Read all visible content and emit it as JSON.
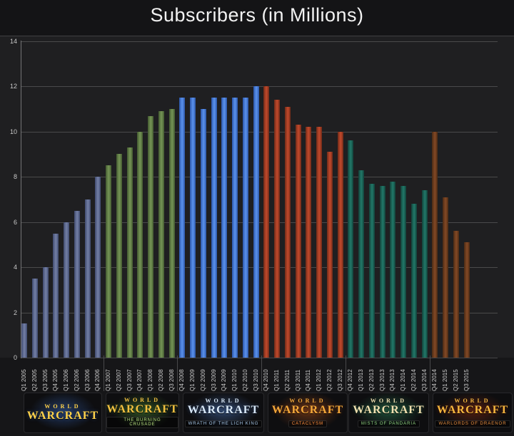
{
  "title": "Subscribers (in Millions)",
  "colors": {
    "page_bg": "#161618",
    "plot_bg": "#1f1f21",
    "gridline": "#6e6e70",
    "title_text": "#f2f2f2",
    "tick_text": "#c8c8c8"
  },
  "chart_data": {
    "type": "bar",
    "title": "Subscribers (in Millions)",
    "xlabel": "",
    "ylabel": "",
    "ylim": [
      0,
      14
    ],
    "yticks": [
      0,
      2,
      4,
      6,
      8,
      10,
      12,
      14
    ],
    "grid": true,
    "legend_position": "none",
    "categories": [
      "Q1 2005",
      "Q2 2005",
      "Q3 2005",
      "Q4 2005",
      "Q1 2006",
      "Q2 2006",
      "Q3 2006",
      "Q4 2006",
      "Q1 2007",
      "Q2 2007",
      "Q3 2007",
      "Q4 2007",
      "Q1 2008",
      "Q2 2008",
      "Q3 2008",
      "Q4 2008",
      "Q1 2009",
      "Q2 2009",
      "Q3 2009",
      "Q4 2009",
      "Q1 2010",
      "Q2 2010",
      "Q3 2010",
      "Q4 2010",
      "Q1 2011",
      "Q2 2011",
      "Q3 2011",
      "Q4 2011",
      "Q1 2012",
      "Q2 2012",
      "Q3 2012",
      "Q4 2012",
      "Q1 2013",
      "Q2 2013",
      "Q3 2013",
      "Q4 2013",
      "Q1 2014",
      "Q2 2014",
      "Q3 2014",
      "Q4 2014",
      "Q1 2015",
      "Q2 2015",
      "Q3 2015"
    ],
    "values": [
      1.5,
      3.5,
      4,
      5.5,
      6,
      6.5,
      7,
      8,
      8.5,
      9,
      9.3,
      10,
      10.7,
      10.9,
      11,
      11.5,
      11.5,
      11,
      11.5,
      11.5,
      11.5,
      11.5,
      12,
      12,
      11.4,
      11.1,
      10.3,
      10.2,
      10.2,
      9.1,
      10,
      9.6,
      8.3,
      7.7,
      7.6,
      7.8,
      7.6,
      6.8,
      7.4,
      10,
      7.1,
      5.6,
      5.1
    ],
    "series": [
      {
        "name": "World of Warcraft",
        "bar_mid": "#6e7aa0",
        "bar_edge": "#3f4a6e",
        "quarters": [
          "Q1 2005",
          "Q2 2005",
          "Q3 2005",
          "Q4 2005",
          "Q1 2006",
          "Q2 2006",
          "Q3 2006",
          "Q4 2006"
        ],
        "values": [
          1.5,
          3.5,
          4,
          5.5,
          6,
          6.5,
          7,
          8
        ]
      },
      {
        "name": "The Burning Crusade",
        "bar_mid": "#708f52",
        "bar_edge": "#42582f",
        "quarters": [
          "Q1 2007",
          "Q2 2007",
          "Q3 2007",
          "Q4 2007",
          "Q1 2008",
          "Q2 2008",
          "Q3 2008"
        ],
        "values": [
          8.5,
          9,
          9.3,
          10,
          10.7,
          10.9,
          11
        ]
      },
      {
        "name": "Wrath of the Lich King",
        "bar_mid": "#568ce6",
        "bar_edge": "#2b55a8",
        "quarters": [
          "Q4 2008",
          "Q1 2009",
          "Q2 2009",
          "Q3 2009",
          "Q4 2009",
          "Q1 2010",
          "Q2 2010",
          "Q3 2010"
        ],
        "values": [
          11.5,
          11.5,
          11,
          11.5,
          11.5,
          11.5,
          11.5,
          12
        ]
      },
      {
        "name": "Cataclysm",
        "bar_mid": "#ba462a",
        "bar_edge": "#6e2a18",
        "quarters": [
          "Q4 2010",
          "Q1 2011",
          "Q2 2011",
          "Q3 2011",
          "Q4 2011",
          "Q1 2012",
          "Q2 2012",
          "Q3 2012"
        ],
        "values": [
          12,
          11.4,
          11.1,
          10.3,
          10.2,
          10.2,
          9.1,
          10
        ]
      },
      {
        "name": "Mists of Pandaria",
        "bar_mid": "#207364",
        "bar_edge": "#123f38",
        "quarters": [
          "Q4 2012",
          "Q1 2013",
          "Q2 2013",
          "Q3 2013",
          "Q4 2013",
          "Q1 2014",
          "Q2 2014",
          "Q3 2014"
        ],
        "values": [
          9.6,
          8.3,
          7.7,
          7.6,
          7.8,
          7.6,
          6.8,
          7.4
        ]
      },
      {
        "name": "Warlords of Draenor",
        "bar_mid": "#7e4624",
        "bar_edge": "#4a2a14",
        "quarters": [
          "Q4 2014",
          "Q1 2015",
          "Q2 2015",
          "Q3 2015"
        ],
        "values": [
          10,
          7.1,
          5.6,
          5.1
        ]
      }
    ]
  },
  "expansions": [
    {
      "id": "classic",
      "logo_top": "WORLD",
      "logo_main": "WARCRAFT",
      "logo_sub": "",
      "main_color": "#ffd24a",
      "sub_color": "",
      "glow": "rgba(60,110,200,0.45)"
    },
    {
      "id": "burning-crusade",
      "logo_top": "WORLD",
      "logo_main": "WARCRAFT",
      "logo_sub": "THE BURNING CRUSADE",
      "main_color": "#f2c040",
      "sub_color": "#b8e080",
      "glow": "rgba(90,160,60,0.40)"
    },
    {
      "id": "wrath-of-the-lich-king",
      "logo_top": "WORLD",
      "logo_main": "WARCRAFT",
      "logo_sub": "WRATH OF THE LICH KING",
      "main_color": "#d8e8f8",
      "sub_color": "#a8c8e8",
      "glow": "rgba(90,140,220,0.40)"
    },
    {
      "id": "cataclysm",
      "logo_top": "WORLD",
      "logo_main": "WARCRAFT",
      "logo_sub": "CATACLYSM",
      "main_color": "#f4a83a",
      "sub_color": "#ff9040",
      "glow": "rgba(220,100,30,0.38)"
    },
    {
      "id": "mists-of-pandaria",
      "logo_top": "WORLD",
      "logo_main": "WARCRAFT",
      "logo_sub": "MISTS OF PANDARIA",
      "main_color": "#f0e0b0",
      "sub_color": "#90d080",
      "glow": "rgba(60,180,120,0.35)"
    },
    {
      "id": "warlords-of-draenor",
      "logo_top": "WORLD",
      "logo_main": "WARCRAFT",
      "logo_sub": "WARLORDS OF DRAENOR",
      "main_color": "#f6b63e",
      "sub_color": "#e89040",
      "glow": "rgba(200,60,20,0.32)"
    }
  ]
}
